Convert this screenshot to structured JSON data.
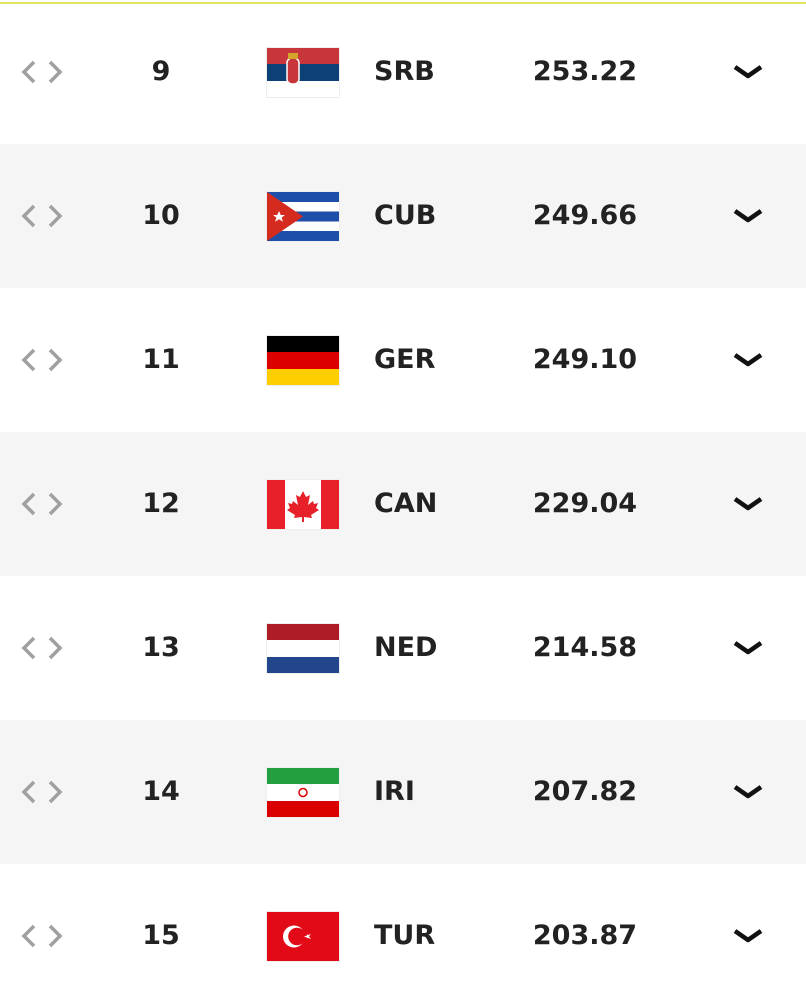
{
  "accent_color": "#dfe65e",
  "rows": [
    {
      "rank": "9",
      "code": "SRB",
      "points": "253.22",
      "flag": "serbia-flag"
    },
    {
      "rank": "10",
      "code": "CUB",
      "points": "249.66",
      "flag": "cuba-flag"
    },
    {
      "rank": "11",
      "code": "GER",
      "points": "249.10",
      "flag": "germany-flag"
    },
    {
      "rank": "12",
      "code": "CAN",
      "points": "229.04",
      "flag": "canada-flag"
    },
    {
      "rank": "13",
      "code": "NED",
      "points": "214.58",
      "flag": "netherlands-flag"
    },
    {
      "rank": "14",
      "code": "IRI",
      "points": "207.82",
      "flag": "iran-flag"
    },
    {
      "rank": "15",
      "code": "TUR",
      "points": "203.87",
      "flag": "turkey-flag"
    }
  ]
}
